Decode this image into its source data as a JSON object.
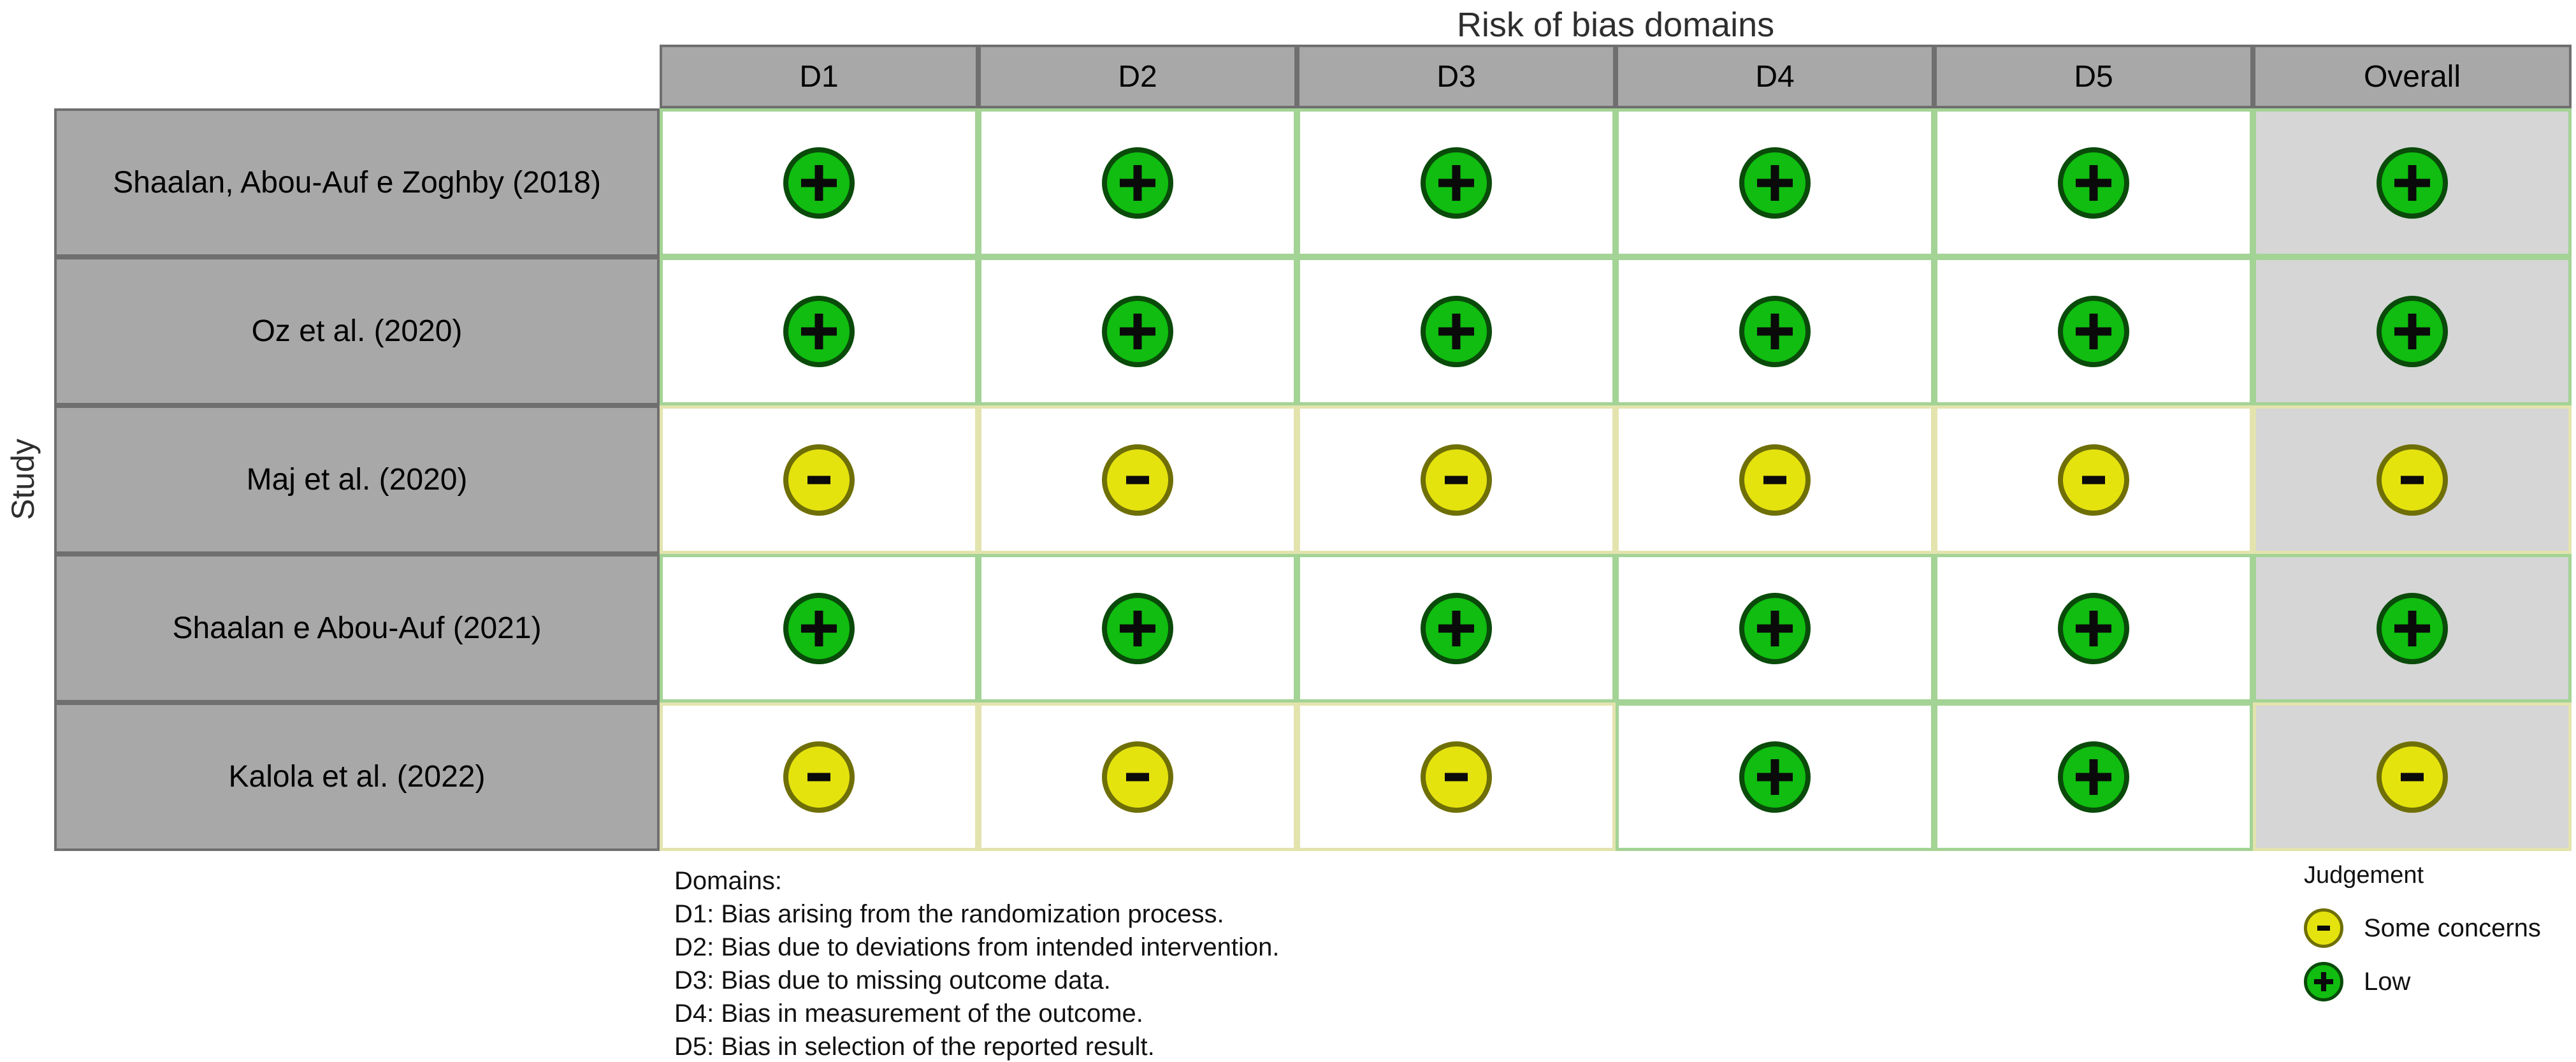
{
  "title": "Risk of bias domains",
  "y_axis_label": "Study",
  "columns": [
    "D1",
    "D2",
    "D3",
    "D4",
    "D5",
    "Overall"
  ],
  "studies": [
    {
      "label": "Shaalan, Abou-Auf e Zoghby (2018)",
      "judgements": [
        "low",
        "low",
        "low",
        "low",
        "low",
        "low"
      ]
    },
    {
      "label": "Oz et al. (2020)",
      "judgements": [
        "low",
        "low",
        "low",
        "low",
        "low",
        "low"
      ]
    },
    {
      "label": "Maj et al. (2020)",
      "judgements": [
        "some_concerns",
        "some_concerns",
        "some_concerns",
        "some_concerns",
        "some_concerns",
        "some_concerns"
      ]
    },
    {
      "label": "Shaalan e Abou-Auf (2021)",
      "judgements": [
        "low",
        "low",
        "low",
        "low",
        "low",
        "low"
      ]
    },
    {
      "label": "Kalola et al. (2022)",
      "judgements": [
        "some_concerns",
        "some_concerns",
        "some_concerns",
        "low",
        "low",
        "some_concerns"
      ]
    }
  ],
  "judgement_types": {
    "low": {
      "label": "Low",
      "symbol": "+",
      "fill": "#10bd10",
      "stroke": "#0a4a0a",
      "cell_border": "#a3d395"
    },
    "some_concerns": {
      "label": "Some concerns",
      "symbol": "-",
      "fill": "#e5e30e",
      "stroke": "#6f6f07",
      "cell_border": "#e3e3ae"
    }
  },
  "colors": {
    "header_bg": "#a8a8a8",
    "header_border": "#6f6f6f",
    "overall_cell_bg": "#d6d6d6",
    "cell_bg": "#ffffff"
  },
  "domains_legend": {
    "heading": "Domains:",
    "items": [
      "D1: Bias arising from the randomization process.",
      "D2: Bias due to deviations from intended intervention.",
      "D3: Bias due to missing outcome data.",
      "D4: Bias in measurement of the outcome.",
      "D5: Bias in selection of the reported result."
    ]
  },
  "judgement_legend": {
    "heading": "Judgement",
    "items": [
      {
        "type": "some_concerns",
        "label": "Some concerns"
      },
      {
        "type": "low",
        "label": "Low"
      }
    ]
  },
  "chart_data": {
    "type": "heatmap",
    "title": "Risk of bias domains",
    "x_categories": [
      "D1",
      "D2",
      "D3",
      "D4",
      "D5",
      "Overall"
    ],
    "y_categories": [
      "Shaalan, Abou-Auf e Zoghby (2018)",
      "Oz et al. (2020)",
      "Maj et al. (2020)",
      "Shaalan e Abou-Auf (2021)",
      "Kalola et al. (2022)"
    ],
    "ylabel": "Study",
    "values": [
      [
        "Low",
        "Low",
        "Low",
        "Low",
        "Low",
        "Low"
      ],
      [
        "Low",
        "Low",
        "Low",
        "Low",
        "Low",
        "Low"
      ],
      [
        "Some concerns",
        "Some concerns",
        "Some concerns",
        "Some concerns",
        "Some concerns",
        "Some concerns"
      ],
      [
        "Low",
        "Low",
        "Low",
        "Low",
        "Low",
        "Low"
      ],
      [
        "Some concerns",
        "Some concerns",
        "Some concerns",
        "Low",
        "Low",
        "Some concerns"
      ]
    ],
    "legend_position": "bottom-right",
    "legend": [
      {
        "label": "Some concerns",
        "symbol": "-",
        "color": "#e5e30e"
      },
      {
        "label": "Low",
        "symbol": "+",
        "color": "#10bd10"
      }
    ]
  }
}
